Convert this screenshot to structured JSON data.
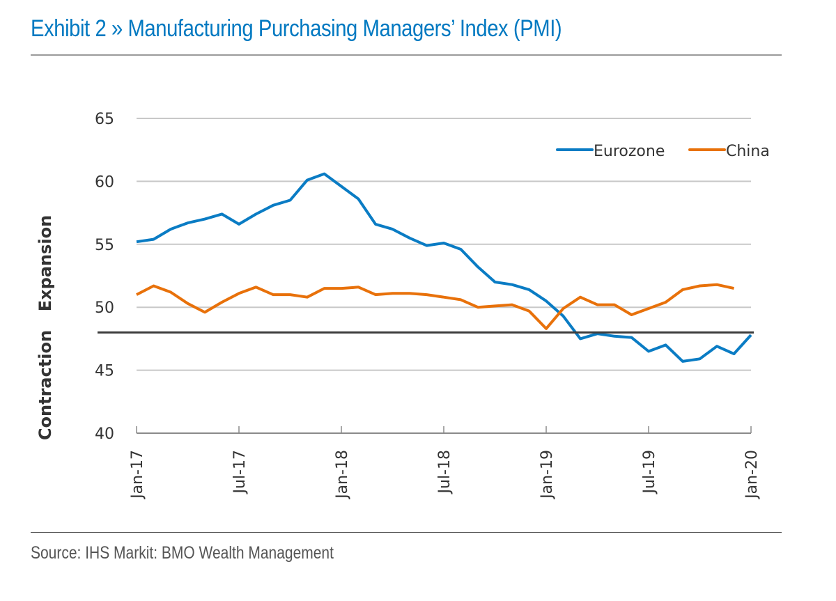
{
  "header": {
    "title": "Exhibit 2 » Manufacturing Purchasing Managers’ Index (PMI)"
  },
  "footer": {
    "source": "Source: IHS Markit: BMO Wealth Management"
  },
  "colors": {
    "title": "#0079c1",
    "eurozone": "#0a7cc4",
    "china": "#e8710a",
    "threshold_line": "#3c3c3c",
    "gridline": "#c8c8c8"
  },
  "chart_data": {
    "type": "line",
    "title": "Exhibit 2 » Manufacturing Purchasing Managers’ Index (PMI)",
    "xlabel": "",
    "ylabel": "",
    "side_labels": {
      "upper": "Expansion",
      "lower": "Contraction"
    },
    "ylim": [
      40,
      65
    ],
    "yticks": [
      40,
      45,
      50,
      55,
      60,
      65
    ],
    "threshold": 48,
    "grid": true,
    "legend_position": "top-right",
    "x_tick_labels": [
      "Jan-17",
      "Jul-17",
      "Jan-18",
      "Jul-18",
      "Jan-19",
      "Jul-19",
      "Jan-20"
    ],
    "x_tick_month_index": [
      0,
      6,
      12,
      18,
      24,
      30,
      36
    ],
    "x_month_count": 37,
    "series": [
      {
        "name": "Eurozone",
        "color": "#0a7cc4",
        "values": [
          55.2,
          55.4,
          56.2,
          56.7,
          57.0,
          57.4,
          56.6,
          57.4,
          58.1,
          58.5,
          60.1,
          60.6,
          59.6,
          58.6,
          56.6,
          56.2,
          55.5,
          54.9,
          55.1,
          54.6,
          53.2,
          52.0,
          51.8,
          51.4,
          50.5,
          49.3,
          47.5,
          47.9,
          47.7,
          47.6,
          46.5,
          47.0,
          45.7,
          45.9,
          46.9,
          46.3,
          47.8
        ]
      },
      {
        "name": "China",
        "color": "#e8710a",
        "values": [
          51.0,
          51.7,
          51.2,
          50.3,
          49.6,
          50.4,
          51.1,
          51.6,
          51.0,
          51.0,
          50.8,
          51.5,
          51.5,
          51.6,
          51.0,
          51.1,
          51.1,
          51.0,
          50.8,
          50.6,
          50.0,
          50.1,
          50.2,
          49.7,
          48.3,
          49.9,
          50.8,
          50.2,
          50.2,
          49.4,
          49.9,
          50.4,
          51.4,
          51.7,
          51.8,
          51.5,
          null
        ]
      }
    ]
  }
}
